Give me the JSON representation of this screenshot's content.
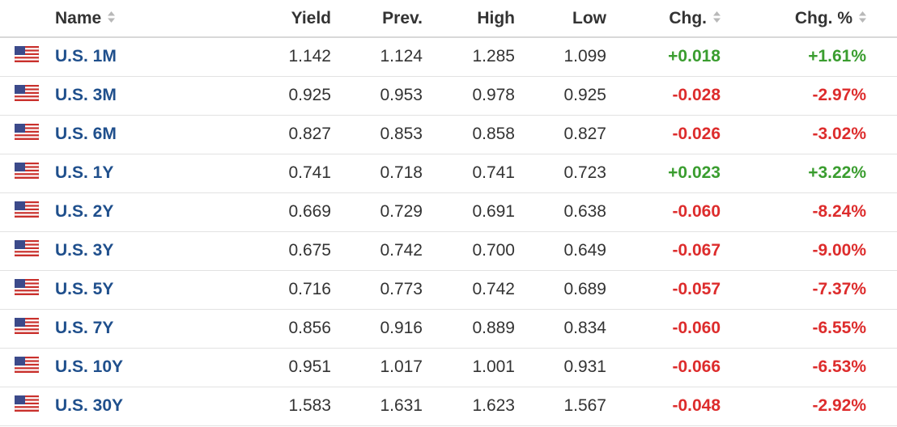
{
  "headers": {
    "name": "Name",
    "yield": "Yield",
    "prev": "Prev.",
    "high": "High",
    "low": "Low",
    "chg": "Chg.",
    "chg_pct": "Chg. %"
  },
  "colors": {
    "name_link": "#1f4f8c",
    "positive": "#3a9d2f",
    "negative": "#dd2c2c"
  },
  "rows": [
    {
      "name": "U.S. 1M",
      "yield": "1.142",
      "prev": "1.124",
      "high": "1.285",
      "low": "1.099",
      "chg": "+0.018",
      "chg_pct": "+1.61%",
      "dir": "pos"
    },
    {
      "name": "U.S. 3M",
      "yield": "0.925",
      "prev": "0.953",
      "high": "0.978",
      "low": "0.925",
      "chg": "-0.028",
      "chg_pct": "-2.97%",
      "dir": "neg"
    },
    {
      "name": "U.S. 6M",
      "yield": "0.827",
      "prev": "0.853",
      "high": "0.858",
      "low": "0.827",
      "chg": "-0.026",
      "chg_pct": "-3.02%",
      "dir": "neg"
    },
    {
      "name": "U.S. 1Y",
      "yield": "0.741",
      "prev": "0.718",
      "high": "0.741",
      "low": "0.723",
      "chg": "+0.023",
      "chg_pct": "+3.22%",
      "dir": "pos"
    },
    {
      "name": "U.S. 2Y",
      "yield": "0.669",
      "prev": "0.729",
      "high": "0.691",
      "low": "0.638",
      "chg": "-0.060",
      "chg_pct": "-8.24%",
      "dir": "neg"
    },
    {
      "name": "U.S. 3Y",
      "yield": "0.675",
      "prev": "0.742",
      "high": "0.700",
      "low": "0.649",
      "chg": "-0.067",
      "chg_pct": "-9.00%",
      "dir": "neg"
    },
    {
      "name": "U.S. 5Y",
      "yield": "0.716",
      "prev": "0.773",
      "high": "0.742",
      "low": "0.689",
      "chg": "-0.057",
      "chg_pct": "-7.37%",
      "dir": "neg"
    },
    {
      "name": "U.S. 7Y",
      "yield": "0.856",
      "prev": "0.916",
      "high": "0.889",
      "low": "0.834",
      "chg": "-0.060",
      "chg_pct": "-6.55%",
      "dir": "neg"
    },
    {
      "name": "U.S. 10Y",
      "yield": "0.951",
      "prev": "1.017",
      "high": "1.001",
      "low": "0.931",
      "chg": "-0.066",
      "chg_pct": "-6.53%",
      "dir": "neg"
    },
    {
      "name": "U.S. 30Y",
      "yield": "1.583",
      "prev": "1.631",
      "high": "1.623",
      "low": "1.567",
      "chg": "-0.048",
      "chg_pct": "-2.92%",
      "dir": "neg"
    }
  ]
}
